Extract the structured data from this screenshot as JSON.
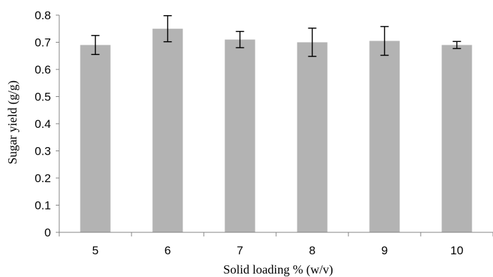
{
  "chart_data": {
    "type": "bar",
    "categories": [
      "5",
      "6",
      "7",
      "8",
      "9",
      "10"
    ],
    "values": [
      0.69,
      0.75,
      0.71,
      0.7,
      0.705,
      0.69
    ],
    "error": [
      0.035,
      0.048,
      0.03,
      0.052,
      0.053,
      0.013
    ],
    "xlabel": "Solid loading % (w/v)",
    "ylabel": "Sugar yield (g/g)",
    "ylim": [
      0,
      0.8
    ],
    "yticks": [
      "0",
      "0.1",
      "0.2",
      "0.3",
      "0.4",
      "0.5",
      "0.6",
      "0.7",
      "0.8"
    ],
    "grid": false,
    "bar_color": "#b3b3b3",
    "error_color": "#000000"
  }
}
